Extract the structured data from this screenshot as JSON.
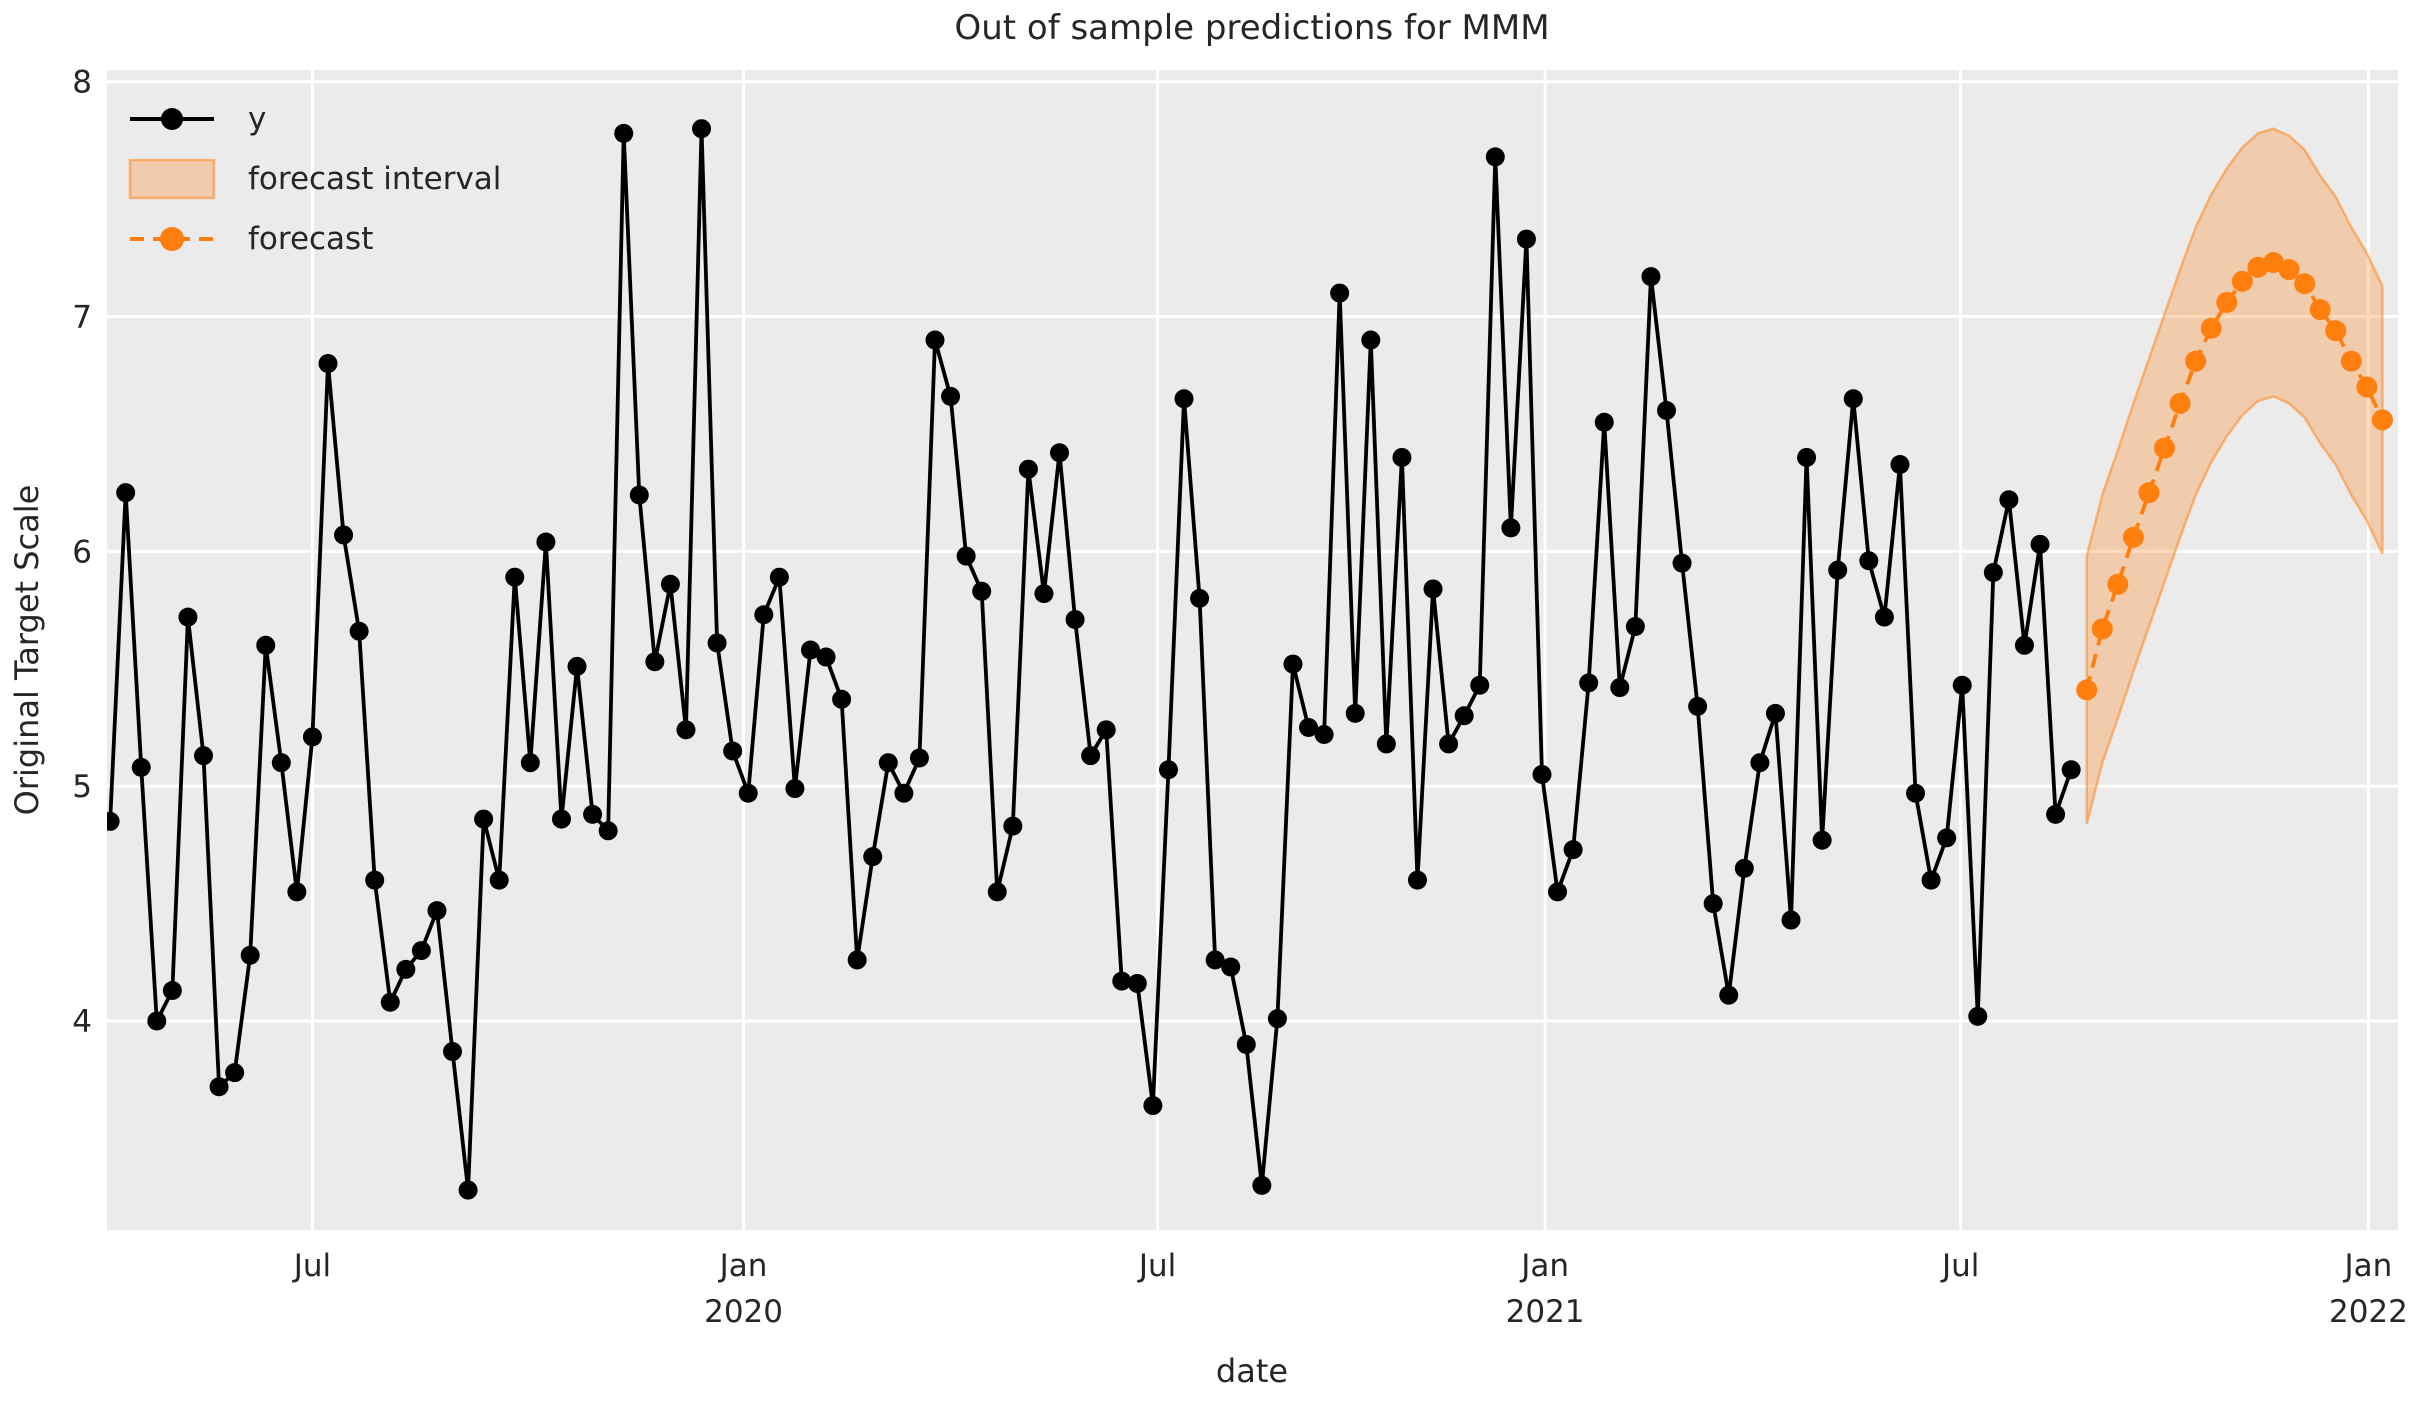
{
  "title": "Out of sample predictions for MMM",
  "axes": {
    "xlabel": "date",
    "ylabel": "Original Target Scale",
    "yticks": [
      {
        "value": 4,
        "label": "4"
      },
      {
        "value": 5,
        "label": "5"
      },
      {
        "value": 6,
        "label": "6"
      },
      {
        "value": 7,
        "label": "7"
      },
      {
        "value": 8,
        "label": "8"
      }
    ],
    "xticks": [
      {
        "week": 13.0,
        "line1": "Jul",
        "line2": ""
      },
      {
        "week": 40.7,
        "line1": "Jan",
        "line2": "2020"
      },
      {
        "week": 67.3,
        "line1": "Jul",
        "line2": ""
      },
      {
        "week": 92.2,
        "line1": "Jan",
        "line2": "2021"
      },
      {
        "week": 118.9,
        "line1": "Jul",
        "line2": ""
      },
      {
        "week": 145.1,
        "line1": "Jan",
        "line2": "2022"
      }
    ]
  },
  "legend": {
    "items": [
      {
        "label": "y",
        "type": "line-marker"
      },
      {
        "label": "forecast interval",
        "type": "patch"
      },
      {
        "label": "forecast",
        "type": "dashed-line-marker"
      }
    ]
  },
  "colors": {
    "plot_bg": "#EBEBEB",
    "grid": "#FFFFFF",
    "series_y": "#000000",
    "forecast": "#FF7F0E",
    "band_fill": "rgba(255,127,14,0.28)",
    "band_edge": "rgba(255,127,14,0.5)",
    "text": "#262626"
  },
  "chart_data": {
    "type": "line",
    "title": "Out of sample predictions for MMM",
    "xlabel": "date",
    "ylabel": "Original Target Scale",
    "x_unit": "weeks (weekly samples, ticks at month starts)",
    "grid": true,
    "legend_position": "upper left",
    "ylim": [
      3.11,
      8.05
    ],
    "xlim_weeks": [
      -0.2,
      147.0
    ],
    "series": [
      {
        "name": "y",
        "style": "solid line with circle markers",
        "color": "#000000",
        "start_week": 0,
        "values": [
          4.85,
          6.25,
          5.08,
          4.0,
          4.13,
          5.72,
          5.13,
          3.72,
          3.78,
          4.28,
          5.6,
          5.1,
          4.55,
          5.21,
          6.8,
          6.07,
          5.66,
          4.6,
          4.08,
          4.22,
          4.3,
          4.47,
          3.87,
          3.28,
          4.86,
          4.6,
          5.89,
          5.1,
          6.04,
          4.86,
          5.51,
          4.88,
          4.81,
          7.78,
          6.24,
          5.53,
          5.86,
          5.24,
          7.8,
          5.61,
          5.15,
          4.97,
          5.73,
          5.89,
          4.99,
          5.58,
          5.55,
          5.37,
          4.26,
          4.7,
          5.1,
          4.97,
          5.12,
          6.9,
          6.66,
          5.98,
          5.83,
          4.55,
          4.83,
          6.35,
          5.82,
          6.42,
          5.71,
          5.13,
          5.24,
          4.17,
          4.16,
          3.64,
          5.07,
          6.65,
          5.8,
          4.26,
          4.23,
          3.9,
          3.3,
          4.01,
          5.52,
          5.25,
          5.22,
          7.1,
          5.31,
          6.9,
          5.18,
          6.4,
          4.6,
          5.84,
          5.18,
          5.3,
          5.43,
          7.68,
          6.1,
          7.33,
          5.05,
          4.55,
          4.73,
          5.44,
          6.55,
          5.42,
          5.68,
          7.17,
          6.6,
          5.95,
          5.34,
          4.5,
          4.11,
          4.65,
          5.1,
          5.31,
          4.43,
          6.4,
          4.77,
          5.92,
          6.65,
          5.96,
          5.72,
          6.37,
          4.97,
          4.6,
          4.78,
          5.43,
          4.02,
          5.91,
          6.22,
          5.6,
          6.03,
          4.88,
          5.07
        ]
      },
      {
        "name": "forecast",
        "style": "dashed line with circle markers",
        "color": "#FF7F0E",
        "start_week": 127,
        "values": [
          5.41,
          5.67,
          5.86,
          6.06,
          6.25,
          6.44,
          6.63,
          6.81,
          6.95,
          7.06,
          7.15,
          7.21,
          7.23,
          7.2,
          7.14,
          7.03,
          6.94,
          6.81,
          6.7,
          6.56
        ]
      },
      {
        "name": "forecast interval",
        "style": "filled band",
        "color": "rgba(255,127,14,0.28)",
        "start_week": 127,
        "upper": [
          5.98,
          6.24,
          6.43,
          6.63,
          6.82,
          7.01,
          7.2,
          7.38,
          7.52,
          7.63,
          7.72,
          7.78,
          7.8,
          7.77,
          7.71,
          7.6,
          7.51,
          7.38,
          7.27,
          7.13
        ],
        "lower": [
          4.84,
          5.1,
          5.29,
          5.49,
          5.68,
          5.87,
          6.06,
          6.24,
          6.38,
          6.49,
          6.58,
          6.64,
          6.66,
          6.63,
          6.57,
          6.46,
          6.37,
          6.24,
          6.13,
          5.99
        ]
      }
    ]
  }
}
